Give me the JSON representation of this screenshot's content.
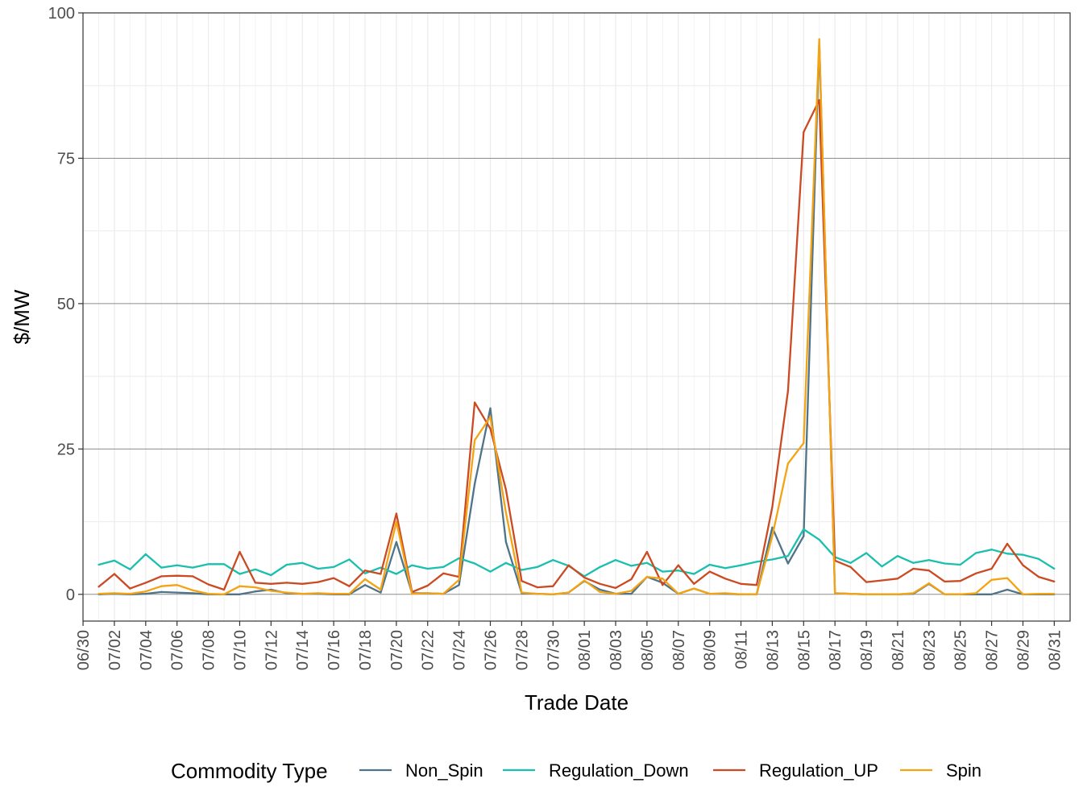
{
  "chart_data": {
    "type": "line",
    "xlabel": "Trade Date",
    "ylabel": "$/MW",
    "ylim": [
      -4.6,
      100
    ],
    "y_ticks": [
      "0",
      "25",
      "50",
      "75",
      "100"
    ],
    "x_ticks": [
      "06/30",
      "07/02",
      "07/04",
      "07/06",
      "07/08",
      "07/10",
      "07/12",
      "07/14",
      "07/16",
      "07/18",
      "07/20",
      "07/22",
      "07/24",
      "07/26",
      "07/28",
      "07/30",
      "08/01",
      "08/03",
      "08/05",
      "08/07",
      "08/09",
      "08/11",
      "08/13",
      "08/15",
      "08/17",
      "08/19",
      "08/21",
      "08/23",
      "08/25",
      "08/27",
      "08/29",
      "08/31"
    ],
    "categories": [
      "07/01",
      "07/02",
      "07/03",
      "07/04",
      "07/05",
      "07/06",
      "07/07",
      "07/08",
      "07/09",
      "07/10",
      "07/11",
      "07/12",
      "07/13",
      "07/14",
      "07/15",
      "07/16",
      "07/17",
      "07/18",
      "07/19",
      "07/20",
      "07/21",
      "07/22",
      "07/23",
      "07/24",
      "07/25",
      "07/26",
      "07/27",
      "07/28",
      "07/29",
      "07/30",
      "07/31",
      "08/01",
      "08/02",
      "08/03",
      "08/04",
      "08/05",
      "08/06",
      "08/07",
      "08/08",
      "08/09",
      "08/10",
      "08/11",
      "08/12",
      "08/13",
      "08/14",
      "08/15",
      "08/16",
      "08/17",
      "08/18",
      "08/19",
      "08/20",
      "08/21",
      "08/22",
      "08/23",
      "08/24",
      "08/25",
      "08/26",
      "08/27",
      "08/28",
      "08/29",
      "08/30",
      "08/31"
    ],
    "grid": true,
    "legend": {
      "title": "Commodity Type",
      "position": "bottom"
    },
    "series": [
      {
        "name": "Non_Spin",
        "color": "#4f7388",
        "values": [
          0.0,
          0.1,
          0.0,
          0.1,
          0.4,
          0.3,
          0.2,
          0.0,
          0.0,
          0.0,
          0.5,
          0.8,
          0.2,
          0.1,
          0.1,
          0.0,
          0.0,
          1.6,
          0.3,
          9.0,
          0.2,
          0.2,
          0.1,
          1.6,
          19.0,
          32.0,
          9.0,
          0.2,
          0.1,
          0.0,
          0.3,
          2.3,
          0.8,
          0.1,
          0.1,
          3.0,
          2.0,
          0.1,
          1.0,
          0.1,
          0.1,
          0.0,
          0.0,
          11.5,
          5.3,
          10.0,
          95.0,
          0.2,
          0.1,
          0.0,
          0.0,
          0.0,
          0.1,
          1.8,
          0.0,
          0.0,
          0.0,
          0.0,
          0.8,
          0.0,
          0.0,
          0.0
        ]
      },
      {
        "name": "Regulation_Down",
        "color": "#1abfae",
        "values": [
          5.1,
          5.8,
          4.3,
          6.9,
          4.6,
          5.0,
          4.6,
          5.2,
          5.2,
          3.5,
          4.3,
          3.3,
          5.1,
          5.4,
          4.4,
          4.7,
          6.0,
          3.6,
          4.6,
          3.5,
          5.0,
          4.4,
          4.7,
          6.2,
          5.3,
          3.9,
          5.4,
          4.2,
          4.7,
          5.9,
          4.9,
          3.1,
          4.7,
          5.9,
          4.9,
          5.4,
          3.9,
          4.1,
          3.5,
          5.1,
          4.5,
          5.0,
          5.6,
          6.0,
          6.6,
          11.2,
          9.4,
          6.4,
          5.4,
          7.1,
          4.8,
          6.6,
          5.4,
          5.9,
          5.3,
          5.1,
          7.1,
          7.7,
          7.0,
          6.8,
          6.1,
          4.4
        ]
      },
      {
        "name": "Regulation_UP",
        "color": "#cb4a22",
        "values": [
          1.3,
          3.5,
          1.0,
          2.0,
          3.1,
          3.2,
          3.1,
          1.7,
          0.8,
          7.3,
          2.0,
          1.8,
          2.0,
          1.8,
          2.1,
          2.8,
          1.4,
          4.1,
          3.5,
          13.9,
          0.4,
          1.5,
          3.6,
          3.0,
          33.0,
          28.5,
          18.0,
          2.3,
          1.2,
          1.4,
          5.0,
          2.9,
          1.8,
          1.1,
          2.6,
          7.3,
          1.6,
          5.0,
          1.8,
          3.9,
          2.7,
          1.8,
          1.6,
          15.0,
          35.0,
          79.5,
          85.0,
          5.8,
          4.7,
          2.1,
          2.4,
          2.7,
          4.4,
          4.1,
          2.2,
          2.3,
          3.6,
          4.4,
          8.7,
          5.0,
          3.0,
          2.2
        ]
      },
      {
        "name": "Spin",
        "color": "#f4a313",
        "values": [
          0.1,
          0.2,
          0.1,
          0.5,
          1.4,
          1.6,
          0.7,
          0.1,
          0.0,
          1.4,
          1.2,
          0.6,
          0.3,
          0.1,
          0.2,
          0.1,
          0.1,
          2.6,
          0.8,
          12.5,
          0.1,
          0.2,
          0.1,
          2.5,
          26.5,
          30.5,
          14.0,
          0.3,
          0.1,
          0.0,
          0.3,
          2.4,
          0.4,
          0.1,
          0.6,
          3.0,
          2.7,
          0.1,
          1.0,
          0.1,
          0.2,
          0.0,
          0.0,
          10.0,
          22.5,
          26.0,
          95.5,
          0.2,
          0.1,
          0.0,
          0.0,
          0.0,
          0.2,
          1.9,
          0.0,
          0.0,
          0.2,
          2.5,
          2.8,
          0.0,
          0.1,
          0.1
        ]
      }
    ]
  }
}
